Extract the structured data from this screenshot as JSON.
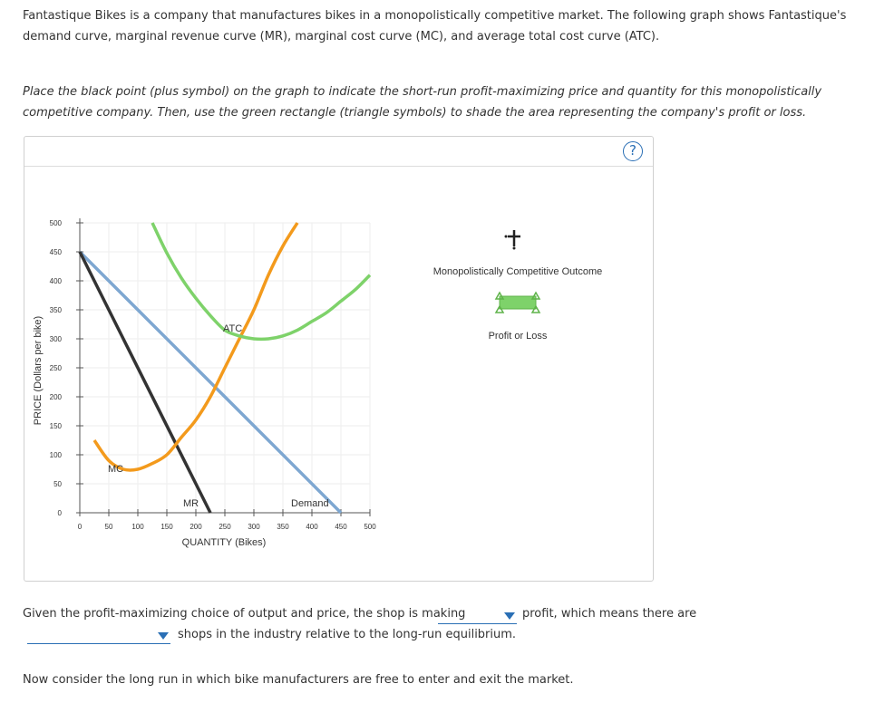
{
  "intro_text": "Fantastique Bikes is a company that manufactures bikes in a monopolistically competitive market. The following graph shows Fantastique's demand curve, marginal revenue curve (MR), marginal cost curve (MC), and average total cost curve (ATC).",
  "instruction_text": "Place the black point (plus symbol) on the graph to indicate the short-run profit-maximizing price and quantity for this monopolistically competitive company. Then, use the green rectangle (triangle symbols) to shade the area representing the company's profit or loss.",
  "help_symbol": "?",
  "graph": {
    "y_axis_label": "PRICE (Dollars per bike)",
    "x_axis_label": "QUANTITY (Bikes)",
    "y_ticks": [
      "0",
      "50",
      "100",
      "150",
      "200",
      "250",
      "300",
      "350",
      "400",
      "450",
      "500"
    ],
    "x_ticks": [
      "0",
      "50",
      "100",
      "150",
      "200",
      "250",
      "300",
      "350",
      "400",
      "450",
      "500"
    ],
    "curve_labels": {
      "atc": "ATC",
      "mc": "MC",
      "mr": "MR",
      "demand": "Demand"
    },
    "colors": {
      "atc": "#7ed26a",
      "mc": "#f39a1c",
      "mr": "#333333",
      "demand": "#7ea7d1",
      "grid": "#eeeeee"
    },
    "tools": {
      "point_label": "Monopolistically Competitive Outcome",
      "rect_label": "Profit or Loss",
      "point_icon": "black-plus-icon",
      "rect_icon": "green-rectangle-icon"
    }
  },
  "chart_data": {
    "type": "line",
    "xlabel": "QUANTITY (Bikes)",
    "ylabel": "PRICE (Dollars per bike)",
    "xlim": [
      0,
      500
    ],
    "ylim": [
      0,
      500
    ],
    "grid": true,
    "series": [
      {
        "name": "Demand",
        "x": [
          0,
          450
        ],
        "y": [
          450,
          0
        ]
      },
      {
        "name": "MR",
        "x": [
          0,
          225
        ],
        "y": [
          450,
          0
        ]
      },
      {
        "name": "MC",
        "x": [
          25,
          50,
          75,
          100,
          125,
          150,
          175,
          200,
          225,
          250,
          275,
          300,
          325,
          350,
          375
        ],
        "y": [
          125,
          90,
          75,
          75,
          85,
          100,
          130,
          160,
          200,
          250,
          300,
          350,
          410,
          460,
          500
        ]
      },
      {
        "name": "ATC",
        "x": [
          125,
          150,
          175,
          200,
          225,
          250,
          275,
          300,
          325,
          350,
          375,
          400,
          425,
          450,
          475,
          500
        ],
        "y": [
          500,
          448,
          405,
          370,
          340,
          315,
          305,
          300,
          300,
          305,
          315,
          330,
          345,
          365,
          385,
          410
        ]
      }
    ]
  },
  "question": {
    "part1": "Given the profit-maximizing choice of output and price, the shop is making",
    "part2": "profit, which means there are",
    "part3": "shops in the industry relative to the long-run equilibrium.",
    "dropdown1_value": "",
    "dropdown2_value": ""
  },
  "footer_text": "Now consider the long run in which bike manufacturers are free to enter and exit the market."
}
